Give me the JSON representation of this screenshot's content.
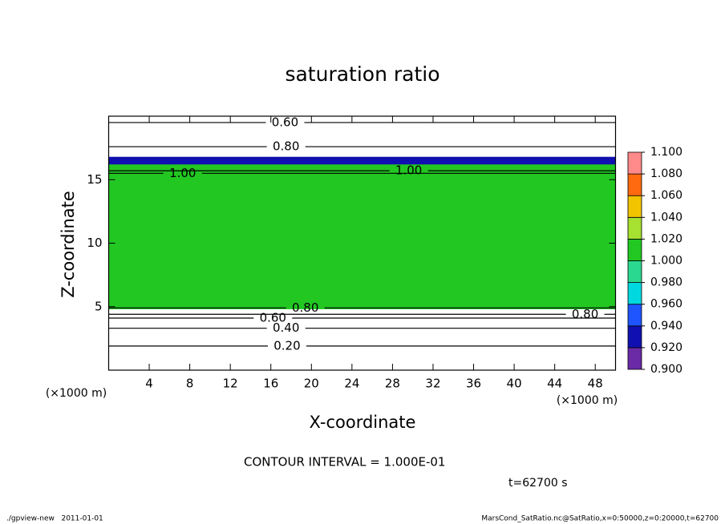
{
  "chart_data": {
    "type": "contour",
    "title": "saturation ratio",
    "x_label": "X-coordinate",
    "y_label": "Z-coordinate",
    "x_unit": "(×1000 m)",
    "xlim": [
      0,
      50
    ],
    "xticks": [
      4,
      8,
      12,
      16,
      20,
      24,
      28,
      32,
      36,
      40,
      44,
      48
    ],
    "ylim": [
      0,
      20
    ],
    "yticks": [
      5,
      10,
      15
    ],
    "colorbar": {
      "ticks": [
        {
          "value": 0.9,
          "label": "0.900"
        },
        {
          "value": 0.92,
          "label": "0.920"
        },
        {
          "value": 0.94,
          "label": "0.940"
        },
        {
          "value": 0.96,
          "label": "0.960"
        },
        {
          "value": 0.98,
          "label": "0.980"
        },
        {
          "value": 1.0,
          "label": "1.000"
        },
        {
          "value": 1.02,
          "label": "1.020"
        },
        {
          "value": 1.04,
          "label": "1.040"
        },
        {
          "value": 1.06,
          "label": "1.060"
        },
        {
          "value": 1.08,
          "label": "1.080"
        },
        {
          "value": 1.1,
          "label": "1.100"
        }
      ],
      "colors": [
        "#6a2aa6",
        "#1010b0",
        "#1f55ff",
        "#00d8e0",
        "#2bd890",
        "#22c722",
        "#a6e030",
        "#f2c400",
        "#ff6a10",
        "#ff8a8a"
      ]
    },
    "regions": [
      {
        "zlim": [
          4.8,
          16.3
        ],
        "value": 1.01
      },
      {
        "zlim": [
          16.2,
          16.8
        ],
        "value": 0.93
      }
    ],
    "contours": [
      {
        "label": "0.60",
        "x": 17.4,
        "z": 19.5
      },
      {
        "label": "0.80",
        "x": 17.5,
        "z": 17.6
      },
      {
        "label": "1.00",
        "x": 7.3,
        "z": 15.5
      },
      {
        "label": "1.00",
        "x": 29.6,
        "z": 15.7
      },
      {
        "label": "0.80",
        "x": 19.4,
        "z": 4.9
      },
      {
        "label": "0.80",
        "x": 47.0,
        "z": 4.4
      },
      {
        "label": "0.60",
        "x": 16.2,
        "z": 4.1
      },
      {
        "label": "0.40",
        "x": 17.5,
        "z": 3.3
      },
      {
        "label": "0.20",
        "x": 17.6,
        "z": 1.9
      }
    ],
    "annotation": "CONTOUR INTERVAL = 1.000E-01",
    "time_label": "t=62700 s",
    "footer_left": "./gpview-new   2011-01-01",
    "footer_right": "MarsCond_SatRatio.nc@SatRatio,x=0:50000,z=0:20000,t=62700"
  }
}
